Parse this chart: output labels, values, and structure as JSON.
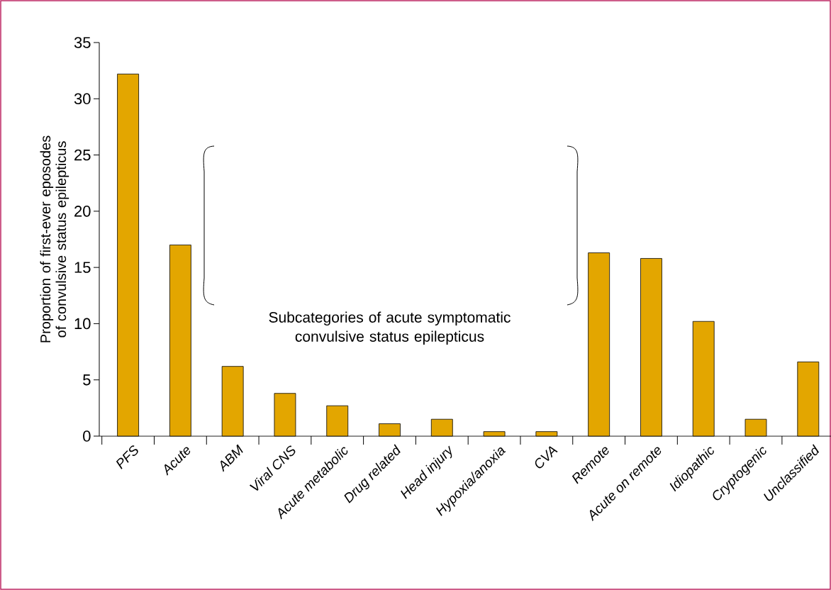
{
  "chart_data": {
    "type": "bar",
    "ylabel": "Proportion of first-ever eposodes of convulsive status epilepticus",
    "categories": [
      "PFS",
      "Acute",
      "ABM",
      "Viral CNS",
      "Acute metabolic",
      "Drug related",
      "Head injury",
      "Hypoxia/anoxia",
      "CVA",
      "Remote",
      "Acute on remote",
      "Idiopathic",
      "Cryptogenic",
      "Unclassified"
    ],
    "values": [
      32.2,
      17.0,
      6.2,
      3.8,
      2.7,
      1.1,
      1.5,
      0.4,
      0.4,
      16.3,
      15.8,
      10.2,
      1.5,
      6.6
    ],
    "color": "#e3a600",
    "ylim": [
      0,
      35
    ],
    "yticks": [
      0,
      5,
      10,
      15,
      20,
      25,
      30,
      35
    ],
    "grid": false,
    "annotations": [
      "Subcategories of acute symptomatic convulsive status epilepticus"
    ]
  }
}
